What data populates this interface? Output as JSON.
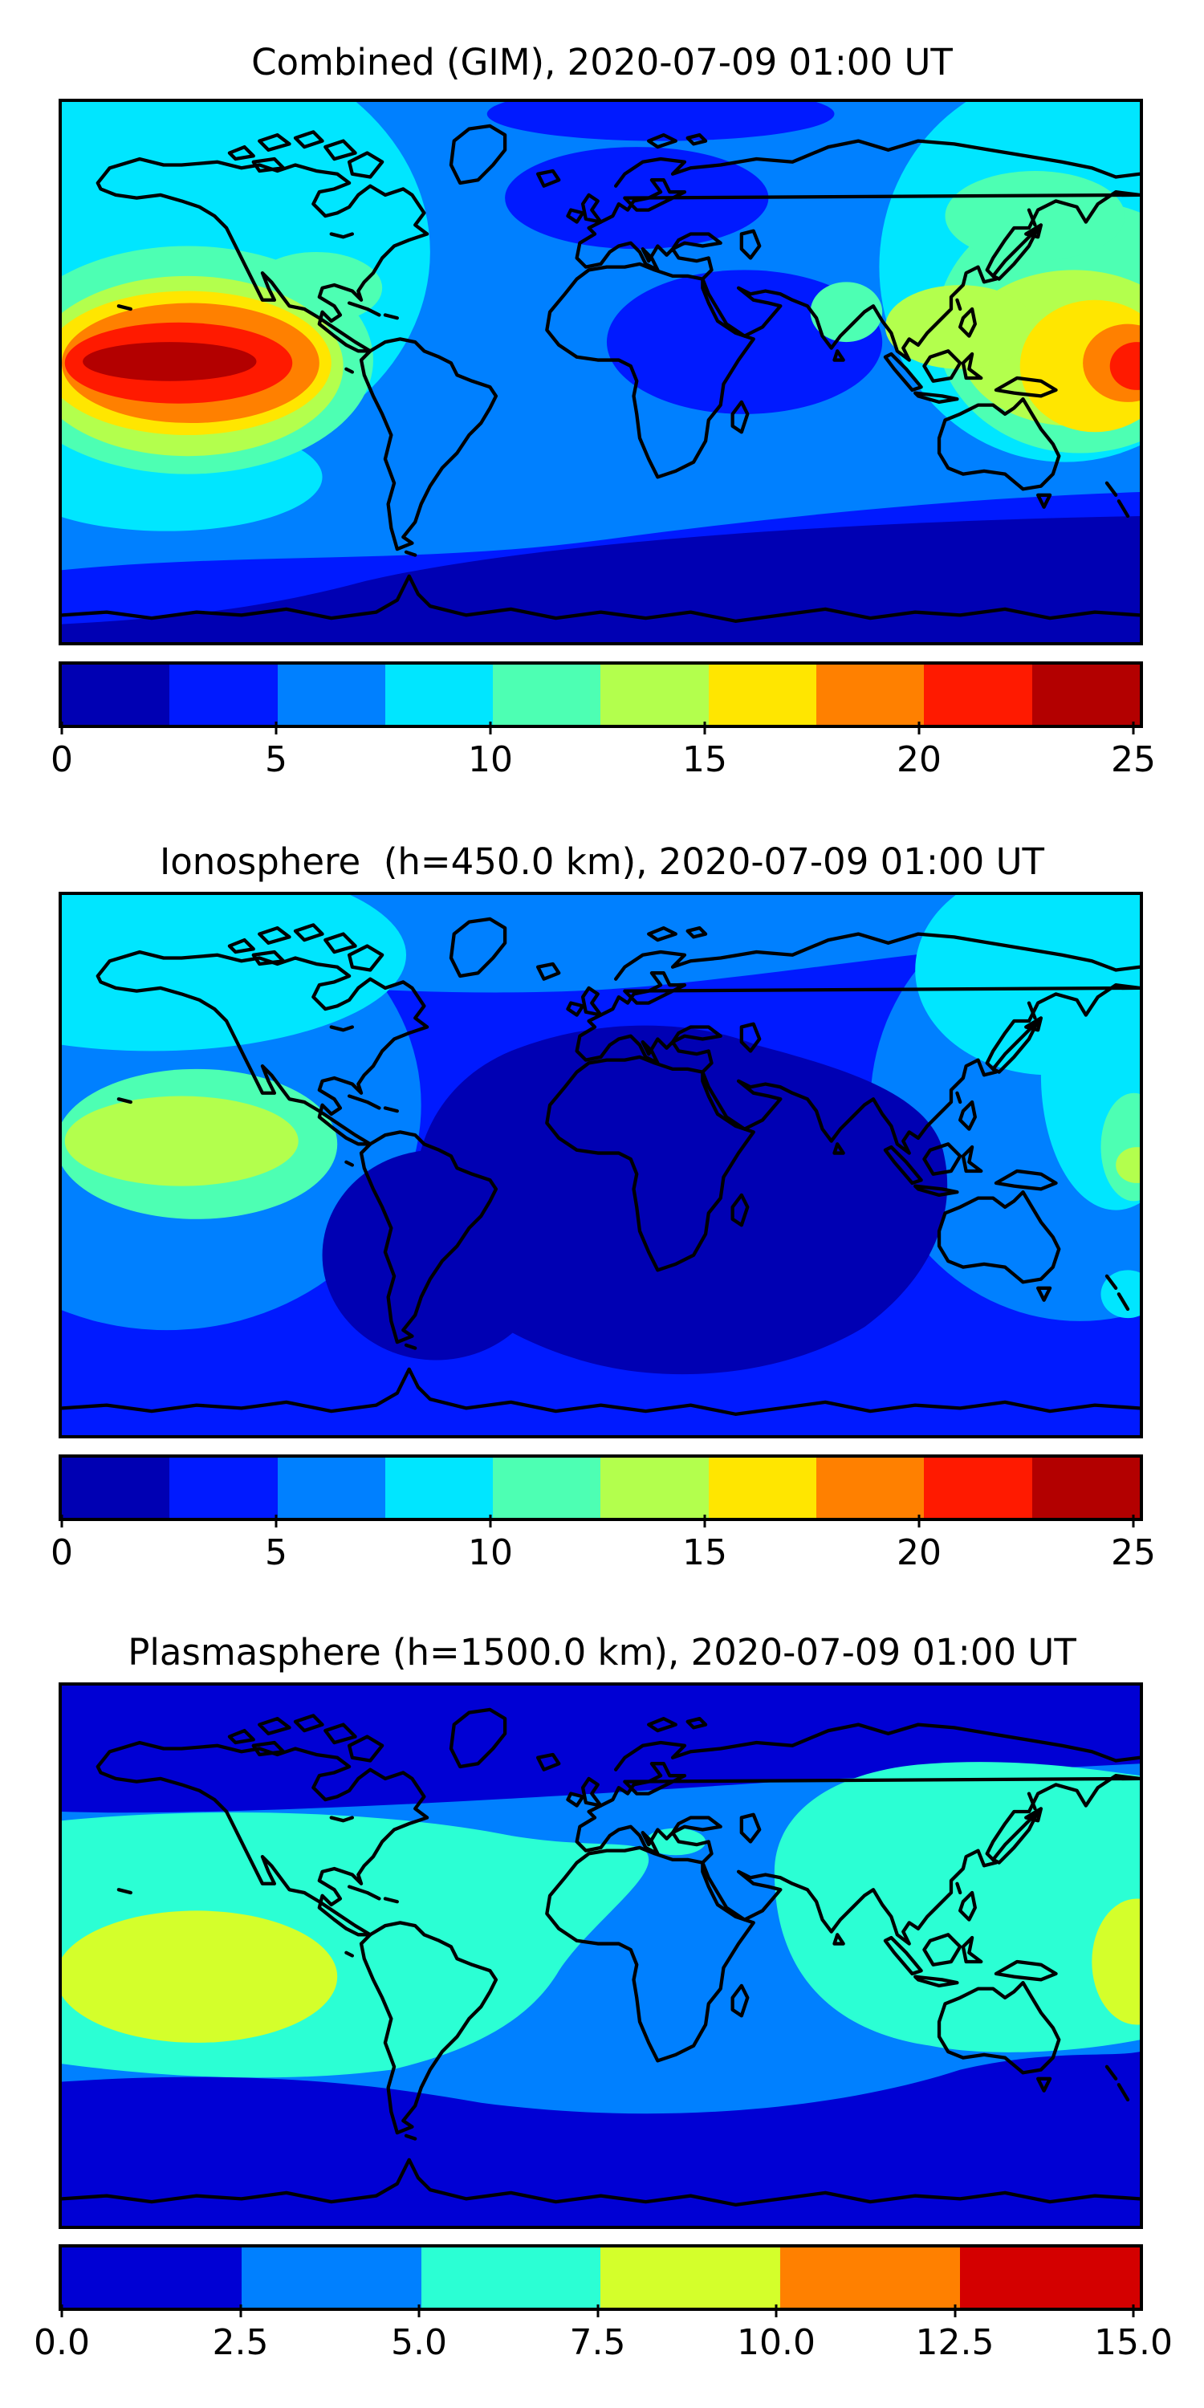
{
  "figure": {
    "background": "#ffffff",
    "panels": [
      {
        "name": "combined-gim",
        "title": "Combined (GIM), 2020-07-09 01:00 UT",
        "colorbar": {
          "min": 0,
          "max": 25,
          "tick_labels": [
            "0",
            "5",
            "10",
            "15",
            "20",
            "25"
          ],
          "colors": [
            "#0000b3",
            "#001aff",
            "#0080ff",
            "#00e6ff",
            "#4dffb3",
            "#b3ff4d",
            "#ffe600",
            "#ff8000",
            "#ff1a00",
            "#b30000"
          ]
        },
        "chart_data": {
          "type": "heatmap",
          "subtype": "filled-contour-world-map",
          "title": "Combined (GIM), 2020-07-09 01:00 UT",
          "colormap": "jet",
          "contour_levels": [
            0,
            2.5,
            5,
            7.5,
            10,
            12.5,
            15,
            17.5,
            20,
            22.5,
            25
          ],
          "colorbar_ticks": [
            0,
            5,
            10,
            15,
            20,
            25
          ],
          "lon": [
            -165,
            -135,
            -105,
            -75,
            -45,
            -15,
            15,
            45,
            75,
            105,
            135,
            165
          ],
          "lat": [
            75,
            45,
            15,
            -15,
            -45,
            -75
          ],
          "values": [
            [
              8,
              8,
              7,
              6,
              5,
              4,
              4,
              5,
              6,
              7,
              7,
              8
            ],
            [
              10,
              11,
              9,
              8,
              6,
              5,
              4,
              5,
              6,
              8,
              11,
              10
            ],
            [
              22,
              24,
              17,
              13,
              8,
              7,
              6,
              4,
              10,
              13,
              14,
              18
            ],
            [
              15,
              17,
              14,
              10,
              8,
              7,
              6,
              6,
              7,
              9,
              12,
              14
            ],
            [
              8,
              8,
              7,
              5,
              4,
              4,
              3,
              3,
              4,
              5,
              6,
              7
            ],
            [
              3,
              3,
              2,
              2,
              2,
              2,
              1,
              1,
              1,
              1,
              2,
              2
            ]
          ],
          "notes": "Peak > 22.5 centered near 144W 3N over the eastern Pacific, wrapping across the dateline; low < 2.5 over Antarctica and high northern Europe"
        }
      },
      {
        "name": "ionosphere",
        "title": "Ionosphere  (h=450.0 km), 2020-07-09 01:00 UT",
        "colorbar": {
          "min": 0,
          "max": 25,
          "tick_labels": [
            "0",
            "5",
            "10",
            "15",
            "20",
            "25"
          ],
          "colors": [
            "#0000b3",
            "#001aff",
            "#0080ff",
            "#00e6ff",
            "#4dffb3",
            "#b3ff4d",
            "#ffe600",
            "#ff8000",
            "#ff1a00",
            "#b30000"
          ]
        },
        "chart_data": {
          "type": "heatmap",
          "subtype": "filled-contour-world-map",
          "title": "Ionosphere  (h=450.0 km), 2020-07-09 01:00 UT",
          "colormap": "jet",
          "contour_levels": [
            0,
            2.5,
            5,
            7.5,
            10,
            12.5,
            15,
            17.5,
            20,
            22.5,
            25
          ],
          "colorbar_ticks": [
            0,
            5,
            10,
            15,
            20,
            25
          ],
          "lon": [
            -165,
            -135,
            -105,
            -75,
            -45,
            -15,
            15,
            45,
            75,
            105,
            135,
            165
          ],
          "lat": [
            75,
            45,
            15,
            -15,
            -45,
            -75
          ],
          "values": [
            [
              8,
              8,
              7,
              6,
              5,
              4,
              4,
              4,
              5,
              6,
              7,
              8
            ],
            [
              9,
              8,
              6,
              4,
              3,
              2,
              2,
              3,
              4,
              5,
              7,
              8
            ],
            [
              12,
              14,
              9,
              4,
              2,
              2,
              2,
              2,
              3,
              5,
              7,
              9
            ],
            [
              11,
              12,
              8,
              3,
              1,
              1,
              1,
              1,
              2,
              4,
              6,
              8
            ],
            [
              6,
              6,
              5,
              3,
              2,
              1,
              1,
              1,
              2,
              3,
              4,
              5
            ],
            [
              4,
              4,
              3,
              2,
              2,
              2,
              1,
              1,
              2,
              2,
              3,
              3
            ]
          ],
          "notes": "Peak 12.5-15 northeast of Hawaii; broad minimum < 2.5 over Africa, Atlantic and Indian Ocean"
        }
      },
      {
        "name": "plasmasphere",
        "title": "Plasmasphere (h=1500.0 km), 2020-07-09 01:00 UT",
        "colorbar": {
          "min": 0,
          "max": 15,
          "tick_labels": [
            "0.0",
            "2.5",
            "5.0",
            "7.5",
            "10.0",
            "12.5",
            "15.0"
          ],
          "colors": [
            "#0000d4",
            "#0080ff",
            "#2bffd4",
            "#d4ff2b",
            "#ff8000",
            "#d40000"
          ]
        },
        "chart_data": {
          "type": "heatmap",
          "subtype": "filled-contour-world-map",
          "title": "Plasmasphere (h=1500.0 km), 2020-07-09 01:00 UT",
          "colormap": "jet",
          "contour_levels": [
            0,
            2.5,
            5,
            7.5,
            10,
            12.5,
            15
          ],
          "colorbar_ticks": [
            0.0,
            2.5,
            5.0,
            7.5,
            10.0,
            12.5,
            15.0
          ],
          "lon": [
            -165,
            -135,
            -105,
            -75,
            -45,
            -15,
            15,
            45,
            75,
            105,
            135,
            165
          ],
          "lat": [
            75,
            45,
            15,
            -15,
            -45,
            -75
          ],
          "values": [
            [
              1,
              1,
              1,
              1,
              1,
              1,
              1,
              1,
              1,
              1,
              1,
              1
            ],
            [
              3,
              3,
              4,
              4,
              3,
              4,
              6,
              4,
              3,
              4,
              5,
              4
            ],
            [
              7,
              8,
              8,
              7,
              6,
              6,
              5,
              5,
              6,
              7,
              7,
              8
            ],
            [
              9,
              9,
              9,
              9,
              7,
              6,
              5,
              5,
              6,
              7,
              8,
              10
            ],
            [
              4,
              4,
              5,
              5,
              4,
              4,
              3,
              3,
              4,
              5,
              5,
              4
            ],
            [
              1,
              1,
              1,
              1,
              1,
              1,
              1,
              1,
              1,
              1,
              1,
              1
            ]
          ],
          "notes": "Equatorial band 7.5-10 over eastern Pacific / South America and near the dateline; small 5-7.5 patch over the central Mediterranean; < 2.5 poleward bands"
        }
      }
    ]
  }
}
